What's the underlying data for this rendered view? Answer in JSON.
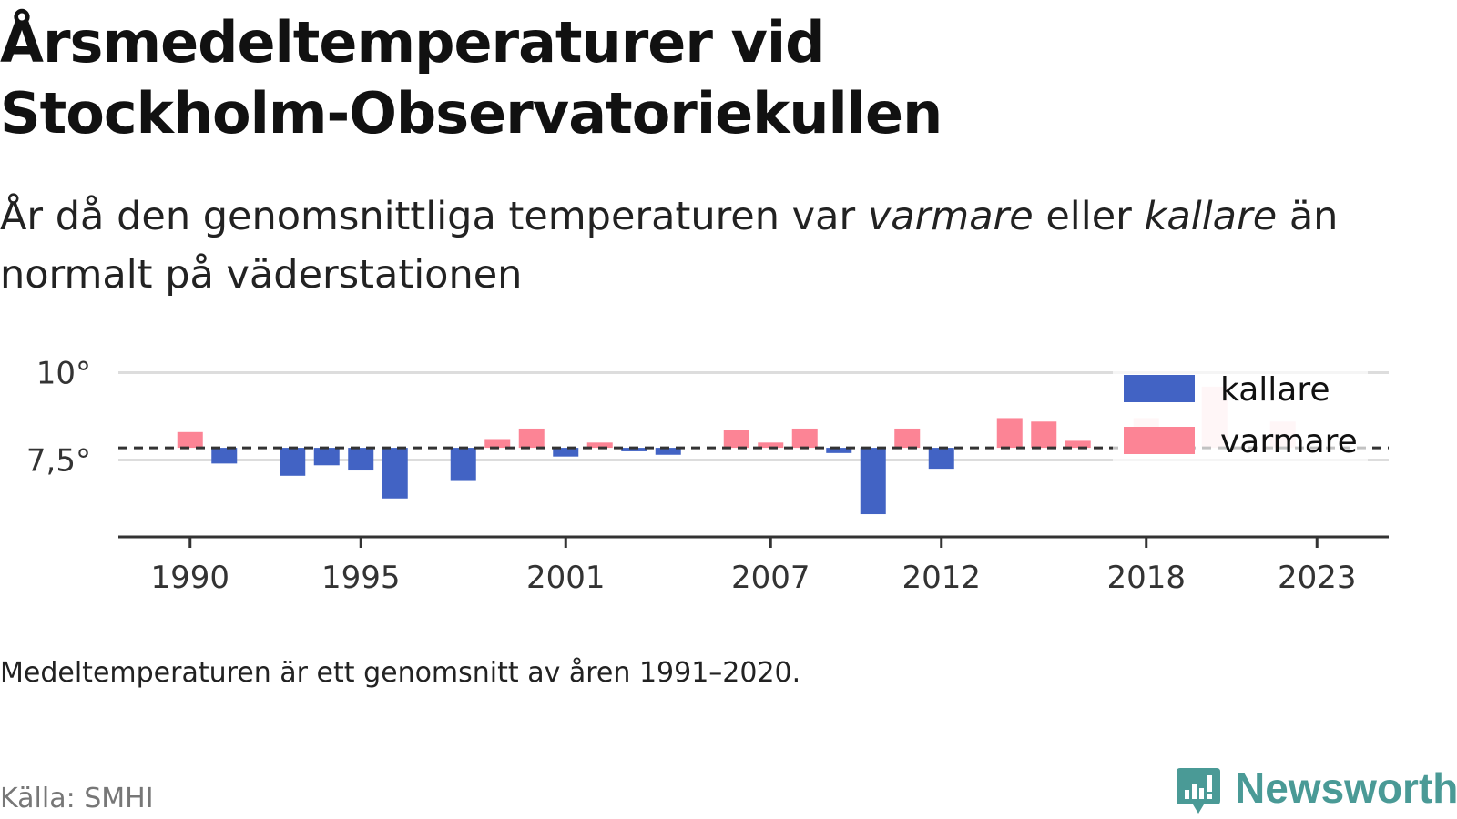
{
  "header": {
    "title_line1": "Årsmedeltemperaturer vid",
    "title_line2": "Stockholm-Observatoriekullen",
    "subtitle_part1": "År då den genomsnittliga temperaturen var ",
    "subtitle_em1": "varmare",
    "subtitle_part2": " eller ",
    "subtitle_em2": "kallare",
    "subtitle_part3": " än normalt på väderstationen"
  },
  "footnote": "Medeltemperaturen är ett genomsnitt av åren 1991–2020.",
  "source": "Källa: SMHI",
  "brand": {
    "name": "Newsworthy",
    "icon": "newsworthy-logo-icon",
    "color": "#4a9a96"
  },
  "chart_data": {
    "type": "bar",
    "baseline": 7.85,
    "xlim": [
      1987.9,
      2025.1
    ],
    "ylim": [
      5.3,
      10.3
    ],
    "x_ticks": [
      1990,
      1995,
      2001,
      2007,
      2012,
      2018,
      2023
    ],
    "y_ticks": [
      {
        "value": 10,
        "label": "10°"
      },
      {
        "value": 7.5,
        "label": "7,5°"
      }
    ],
    "grid": true,
    "legend_position": "top-right",
    "colors": {
      "kallare": "#4263c4",
      "varmare": "#fc8495",
      "baseline": "#333333",
      "axis": "#333333",
      "grid": "#dddddd"
    },
    "legend": [
      {
        "key": "kallare",
        "label": "kallare"
      },
      {
        "key": "varmare",
        "label": "varmare"
      }
    ],
    "years": [
      1990,
      1991,
      1992,
      1993,
      1994,
      1995,
      1996,
      1997,
      1998,
      1999,
      2000,
      2001,
      2002,
      2003,
      2004,
      2005,
      2006,
      2007,
      2008,
      2009,
      2010,
      2011,
      2012,
      2013,
      2014,
      2015,
      2016,
      2017,
      2018,
      2019,
      2020,
      2021,
      2022,
      2023
    ],
    "values": [
      8.3,
      7.4,
      7.85,
      7.05,
      7.35,
      7.2,
      6.4,
      7.85,
      6.9,
      8.1,
      8.4,
      7.6,
      8.0,
      7.75,
      7.65,
      7.85,
      8.35,
      8.0,
      8.4,
      7.7,
      5.95,
      8.4,
      7.25,
      7.85,
      8.7,
      8.6,
      8.05,
      7.85,
      8.7,
      8.45,
      9.6,
      7.85,
      8.6,
      7.85
    ]
  }
}
